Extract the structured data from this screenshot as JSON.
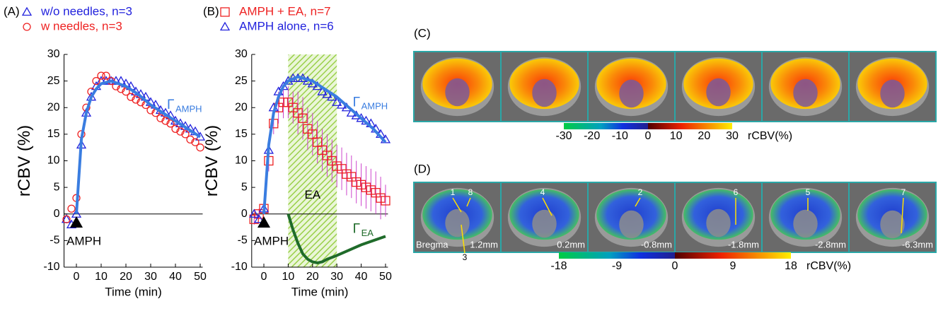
{
  "chart_data": [
    {
      "type": "scatter",
      "panel": "(A)",
      "ylabel": "rCBV (%)",
      "xlabel": "Time (min)",
      "xlim": [
        -5,
        51
      ],
      "xticks": [
        0,
        10,
        20,
        30,
        40,
        50
      ],
      "ylim": [
        -10,
        30
      ],
      "yticks": [
        -10,
        -5,
        0,
        5,
        10,
        15,
        20,
        25,
        30
      ],
      "hline": 0,
      "x": [
        -4,
        -2,
        0,
        2,
        4,
        6,
        8,
        10,
        12,
        14,
        16,
        18,
        20,
        22,
        24,
        26,
        28,
        30,
        32,
        34,
        36,
        38,
        40,
        42,
        44,
        46,
        48,
        50
      ],
      "series": [
        {
          "name": "w/o needles, n=3",
          "color": "#2222dd",
          "marker": "triangle",
          "values": [
            -1,
            -2,
            0,
            13,
            19,
            22,
            24,
            25,
            25,
            25,
            25,
            25,
            24.5,
            24,
            23,
            22.5,
            22,
            21,
            20.5,
            19.5,
            19,
            18.5,
            17.5,
            17,
            16.5,
            16,
            15.5,
            14.5
          ]
        },
        {
          "name": "w   needles, n=3",
          "color": "#ee2222",
          "marker": "circle",
          "values": [
            -1,
            1,
            3,
            15,
            20,
            23,
            25,
            26,
            26,
            25,
            24,
            23.5,
            23,
            22,
            21.5,
            21,
            20.5,
            19.5,
            19,
            18,
            17.5,
            17,
            16,
            15.5,
            15,
            14,
            13.5,
            12.5
          ]
        }
      ],
      "fits": [
        {
          "symbol": "Γ",
          "sub": "AMPH",
          "color": "#3a7de0",
          "x": [
            0,
            2,
            4,
            6,
            8,
            10,
            14,
            20,
            25,
            30,
            35,
            40,
            45,
            50
          ],
          "values": [
            0,
            14,
            19,
            22,
            23.5,
            24.5,
            25,
            24,
            22.5,
            20.5,
            19,
            17.5,
            16,
            14.5
          ]
        }
      ],
      "marker_event": {
        "text": "AMPH",
        "x": 0,
        "y": -1.5
      }
    },
    {
      "type": "scatter",
      "panel": "(B)",
      "ylabel": "rCBV (%)",
      "xlabel": "Time (min)",
      "xlim": [
        -5,
        51
      ],
      "xticks": [
        0,
        10,
        20,
        30,
        40,
        50
      ],
      "ylim": [
        -10,
        30
      ],
      "yticks": [
        -10,
        -5,
        0,
        5,
        10,
        15,
        20,
        25,
        30
      ],
      "hline": 0,
      "span": {
        "x": [
          10,
          30
        ],
        "label": "EA",
        "color": "#9ad04a"
      },
      "x": [
        -4,
        -2,
        0,
        2,
        4,
        6,
        8,
        10,
        12,
        14,
        16,
        18,
        20,
        22,
        24,
        26,
        28,
        30,
        32,
        34,
        36,
        38,
        40,
        42,
        44,
        46,
        48,
        50
      ],
      "series": [
        {
          "name": "AMPH + EA, n=7",
          "color": "#ee2222",
          "marker": "square",
          "error_color": "#cc44cc",
          "values": [
            -1,
            0,
            1,
            10,
            17,
            20,
            21,
            21,
            20,
            19,
            18,
            16,
            15,
            13.5,
            12,
            11,
            10,
            9,
            8.5,
            7.5,
            7,
            6,
            5.5,
            5,
            4.5,
            4,
            3,
            2.5
          ],
          "errors": [
            1,
            1,
            1,
            2,
            2,
            3,
            3,
            3,
            3,
            4,
            4,
            4,
            4,
            4,
            4,
            4,
            4,
            4,
            4,
            4,
            4,
            4,
            4,
            4,
            4,
            4,
            4,
            3
          ]
        },
        {
          "name": "AMPH alone, n=6",
          "color": "#2222dd",
          "marker": "triangle",
          "values": [
            0,
            -1,
            1,
            12,
            20,
            23,
            24,
            25,
            25.5,
            25.5,
            25.5,
            25,
            24.5,
            24,
            23,
            22.5,
            22,
            21,
            20.5,
            20,
            19,
            18.5,
            18,
            17.5,
            17,
            16,
            15,
            14
          ]
        }
      ],
      "fits": [
        {
          "symbol": "Γ",
          "sub": "AMPH",
          "color": "#3a7de0",
          "x": [
            0,
            2,
            4,
            6,
            8,
            10,
            14,
            20,
            25,
            30,
            35,
            40,
            45,
            50
          ],
          "values": [
            0,
            13,
            19,
            22,
            24,
            25,
            25.8,
            25,
            23.5,
            22,
            20,
            18,
            16,
            13.5
          ]
        },
        {
          "symbol": "Γ",
          "sub": "EA",
          "color": "#1f6b2a",
          "x": [
            10,
            12,
            14,
            16,
            18,
            20,
            22,
            24,
            26,
            30,
            35,
            40,
            45,
            50
          ],
          "values": [
            0,
            -3,
            -5.5,
            -7.5,
            -8.5,
            -9,
            -9.2,
            -9,
            -8.5,
            -7.8,
            -6.8,
            -5.8,
            -5,
            -4.2
          ]
        }
      ],
      "marker_event": {
        "text": "AMPH",
        "x": 0,
        "y": -1.5
      }
    }
  ],
  "panel_c": {
    "label": "(C)",
    "colorbar": {
      "lim": [
        -30,
        30
      ],
      "ticks": [
        -30,
        -20,
        -10,
        0,
        10,
        20,
        30
      ],
      "label": "rCBV(%)"
    }
  },
  "panel_d": {
    "label": "(D)",
    "colorbar": {
      "lim": [
        -18,
        18
      ],
      "ticks": [
        -18,
        -9,
        0,
        9,
        18
      ],
      "label": "rCBV(%)"
    },
    "bregma": "Bregma",
    "slices": [
      "1.2mm",
      "0.2mm",
      "-0.8mm",
      "-1.8mm",
      "-2.8mm",
      "-6.3mm"
    ],
    "rois": [
      "1",
      "8",
      "4",
      "2",
      "6",
      "5",
      "7",
      "3"
    ]
  }
}
